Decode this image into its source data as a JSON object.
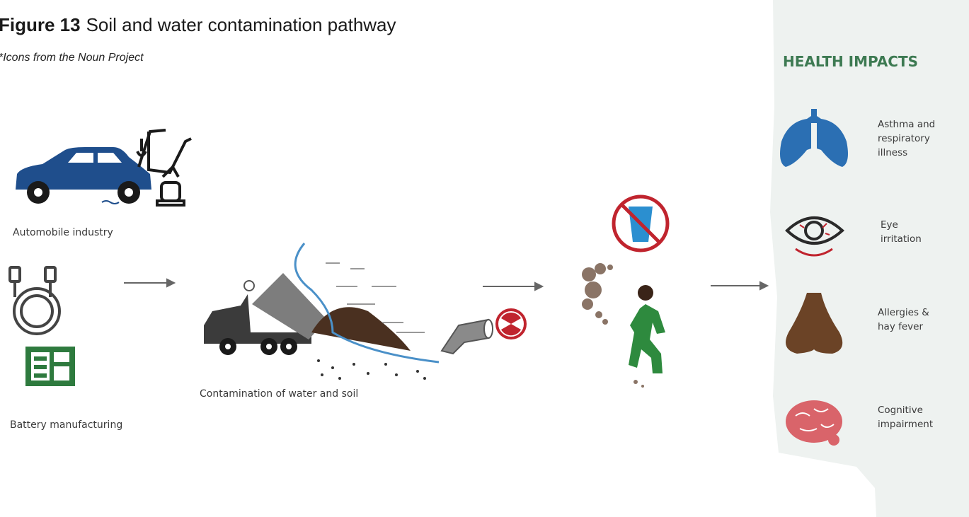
{
  "header": {
    "figure_label": "Figure 13",
    "title": "Soil and water contamination pathway",
    "note": "*Icons from the Noun Project"
  },
  "sources": [
    {
      "label": "Automobile industry"
    },
    {
      "label": "Battery manufacturing"
    }
  ],
  "contamination": {
    "label": "Contamination of water and soil"
  },
  "health_impacts": {
    "title": "HEALTH IMPACTS",
    "items": [
      {
        "lines": [
          "Asthma and",
          "respiratory",
          "illness"
        ]
      },
      {
        "lines": [
          "Eye",
          "irritation"
        ]
      },
      {
        "lines": [
          "Allergies &",
          "hay fever"
        ]
      },
      {
        "lines": [
          "Cognitive",
          "impairment"
        ]
      }
    ]
  }
}
